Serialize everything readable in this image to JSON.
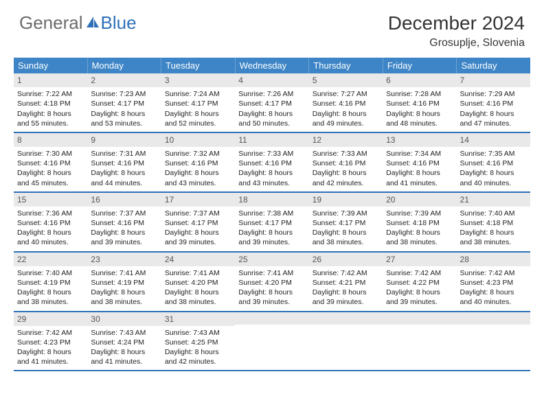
{
  "brand": {
    "part1": "General",
    "part2": "Blue"
  },
  "title": "December 2024",
  "location": "Grosuplje, Slovenia",
  "colors": {
    "header_bg": "#3d85c6",
    "header_text": "#ffffff",
    "rule": "#2f70b8",
    "daynum_bg": "#e9e9e9",
    "text": "#222222",
    "brand_gray": "#6b6b6b",
    "brand_blue": "#2f70b8"
  },
  "day_headers": [
    "Sunday",
    "Monday",
    "Tuesday",
    "Wednesday",
    "Thursday",
    "Friday",
    "Saturday"
  ],
  "weeks": [
    [
      {
        "n": "1",
        "sr": "7:22 AM",
        "ss": "4:18 PM",
        "dl": "8 hours and 55 minutes."
      },
      {
        "n": "2",
        "sr": "7:23 AM",
        "ss": "4:17 PM",
        "dl": "8 hours and 53 minutes."
      },
      {
        "n": "3",
        "sr": "7:24 AM",
        "ss": "4:17 PM",
        "dl": "8 hours and 52 minutes."
      },
      {
        "n": "4",
        "sr": "7:26 AM",
        "ss": "4:17 PM",
        "dl": "8 hours and 50 minutes."
      },
      {
        "n": "5",
        "sr": "7:27 AM",
        "ss": "4:16 PM",
        "dl": "8 hours and 49 minutes."
      },
      {
        "n": "6",
        "sr": "7:28 AM",
        "ss": "4:16 PM",
        "dl": "8 hours and 48 minutes."
      },
      {
        "n": "7",
        "sr": "7:29 AM",
        "ss": "4:16 PM",
        "dl": "8 hours and 47 minutes."
      }
    ],
    [
      {
        "n": "8",
        "sr": "7:30 AM",
        "ss": "4:16 PM",
        "dl": "8 hours and 45 minutes."
      },
      {
        "n": "9",
        "sr": "7:31 AM",
        "ss": "4:16 PM",
        "dl": "8 hours and 44 minutes."
      },
      {
        "n": "10",
        "sr": "7:32 AM",
        "ss": "4:16 PM",
        "dl": "8 hours and 43 minutes."
      },
      {
        "n": "11",
        "sr": "7:33 AM",
        "ss": "4:16 PM",
        "dl": "8 hours and 43 minutes."
      },
      {
        "n": "12",
        "sr": "7:33 AM",
        "ss": "4:16 PM",
        "dl": "8 hours and 42 minutes."
      },
      {
        "n": "13",
        "sr": "7:34 AM",
        "ss": "4:16 PM",
        "dl": "8 hours and 41 minutes."
      },
      {
        "n": "14",
        "sr": "7:35 AM",
        "ss": "4:16 PM",
        "dl": "8 hours and 40 minutes."
      }
    ],
    [
      {
        "n": "15",
        "sr": "7:36 AM",
        "ss": "4:16 PM",
        "dl": "8 hours and 40 minutes."
      },
      {
        "n": "16",
        "sr": "7:37 AM",
        "ss": "4:16 PM",
        "dl": "8 hours and 39 minutes."
      },
      {
        "n": "17",
        "sr": "7:37 AM",
        "ss": "4:17 PM",
        "dl": "8 hours and 39 minutes."
      },
      {
        "n": "18",
        "sr": "7:38 AM",
        "ss": "4:17 PM",
        "dl": "8 hours and 39 minutes."
      },
      {
        "n": "19",
        "sr": "7:39 AM",
        "ss": "4:17 PM",
        "dl": "8 hours and 38 minutes."
      },
      {
        "n": "20",
        "sr": "7:39 AM",
        "ss": "4:18 PM",
        "dl": "8 hours and 38 minutes."
      },
      {
        "n": "21",
        "sr": "7:40 AM",
        "ss": "4:18 PM",
        "dl": "8 hours and 38 minutes."
      }
    ],
    [
      {
        "n": "22",
        "sr": "7:40 AM",
        "ss": "4:19 PM",
        "dl": "8 hours and 38 minutes."
      },
      {
        "n": "23",
        "sr": "7:41 AM",
        "ss": "4:19 PM",
        "dl": "8 hours and 38 minutes."
      },
      {
        "n": "24",
        "sr": "7:41 AM",
        "ss": "4:20 PM",
        "dl": "8 hours and 38 minutes."
      },
      {
        "n": "25",
        "sr": "7:41 AM",
        "ss": "4:20 PM",
        "dl": "8 hours and 39 minutes."
      },
      {
        "n": "26",
        "sr": "7:42 AM",
        "ss": "4:21 PM",
        "dl": "8 hours and 39 minutes."
      },
      {
        "n": "27",
        "sr": "7:42 AM",
        "ss": "4:22 PM",
        "dl": "8 hours and 39 minutes."
      },
      {
        "n": "28",
        "sr": "7:42 AM",
        "ss": "4:23 PM",
        "dl": "8 hours and 40 minutes."
      }
    ],
    [
      {
        "n": "29",
        "sr": "7:42 AM",
        "ss": "4:23 PM",
        "dl": "8 hours and 41 minutes."
      },
      {
        "n": "30",
        "sr": "7:43 AM",
        "ss": "4:24 PM",
        "dl": "8 hours and 41 minutes."
      },
      {
        "n": "31",
        "sr": "7:43 AM",
        "ss": "4:25 PM",
        "dl": "8 hours and 42 minutes."
      },
      {
        "blank": true
      },
      {
        "blank": true
      },
      {
        "blank": true
      },
      {
        "blank": true
      }
    ]
  ],
  "labels": {
    "sunrise": "Sunrise: ",
    "sunset": "Sunset: ",
    "daylight": "Daylight: "
  }
}
